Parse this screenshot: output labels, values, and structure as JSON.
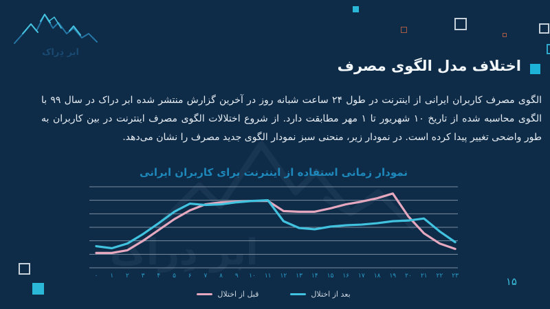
{
  "slide": {
    "background_color": "#0e2b48",
    "page_number": "۱۵",
    "accent_color": "#2ab7d8"
  },
  "logo": {
    "brand_name": "ابر دِراک",
    "icon": "mountain-logo-icon"
  },
  "header": {
    "title": "اختلاف مدل الگوی مصرف",
    "bullet_color": "#1db3d8"
  },
  "body": {
    "paragraph": "الگوی مصرف کاربران ایرانی از اینترنت در طول ۲۴ ساعت شبانه روز در آخرین گزارش منتشر شده ابر دراک در سال ۹۹ با الگوی محاسبه شده از تاریخ ۱۰ شهریور تا ۱ مهر مطابقت دارد. از شروع اختلالات الگوی مصرف اینترنت در بین کاربران به طور واضحی تغییر پیدا کرده است. در نمودار زیر، منحنی سبز نمودار الگوی جدید مصرف را نشان می‌دهد."
  },
  "chart_data": {
    "type": "line",
    "title": "نمودار زمانی استفاده از اینترنت برای کاربران ایرانی",
    "xlabel": "",
    "ylabel": "",
    "x_labels": [
      "۰",
      "۱",
      "۲",
      "۳",
      "۴",
      "۵",
      "۶",
      "۷",
      "۸",
      "۹",
      "۱۰",
      "۱۱",
      "۱۲",
      "۱۳",
      "۱۴",
      "۱۵",
      "۱۶",
      "۱۷",
      "۱۸",
      "۱۹",
      "۲۰",
      "۲۱",
      "۲۲",
      "۲۳"
    ],
    "x_values": [
      0,
      1,
      2,
      3,
      4,
      5,
      6,
      7,
      8,
      9,
      10,
      11,
      12,
      13,
      14,
      15,
      16,
      17,
      18,
      19,
      20,
      21,
      22,
      23
    ],
    "series": [
      {
        "name": "قبل از اختلال",
        "color": "#e5a8be",
        "values": [
          1.1,
          1.1,
          1.3,
          2.0,
          2.8,
          3.6,
          4.25,
          4.7,
          4.85,
          4.9,
          4.95,
          4.95,
          4.2,
          4.15,
          4.15,
          4.4,
          4.7,
          4.9,
          5.15,
          5.5,
          3.8,
          2.55,
          1.8,
          1.4
        ]
      },
      {
        "name": "بعد از اختلال",
        "color": "#41c3df",
        "values": [
          1.6,
          1.45,
          1.8,
          2.5,
          3.3,
          4.15,
          4.75,
          4.65,
          4.7,
          4.85,
          4.95,
          5.0,
          3.45,
          2.95,
          2.85,
          3.05,
          3.15,
          3.2,
          3.3,
          3.45,
          3.5,
          3.65,
          2.7,
          1.9
        ]
      }
    ],
    "ylim": [
      0,
      6
    ],
    "gridlines": 7,
    "grid": true,
    "grid_color": "rgba(214,226,235,0.55)",
    "legend_position": "bottom",
    "note": "y values estimated from unlabeled gridlines (0–6 scale), hours 0–23 on x axis"
  }
}
